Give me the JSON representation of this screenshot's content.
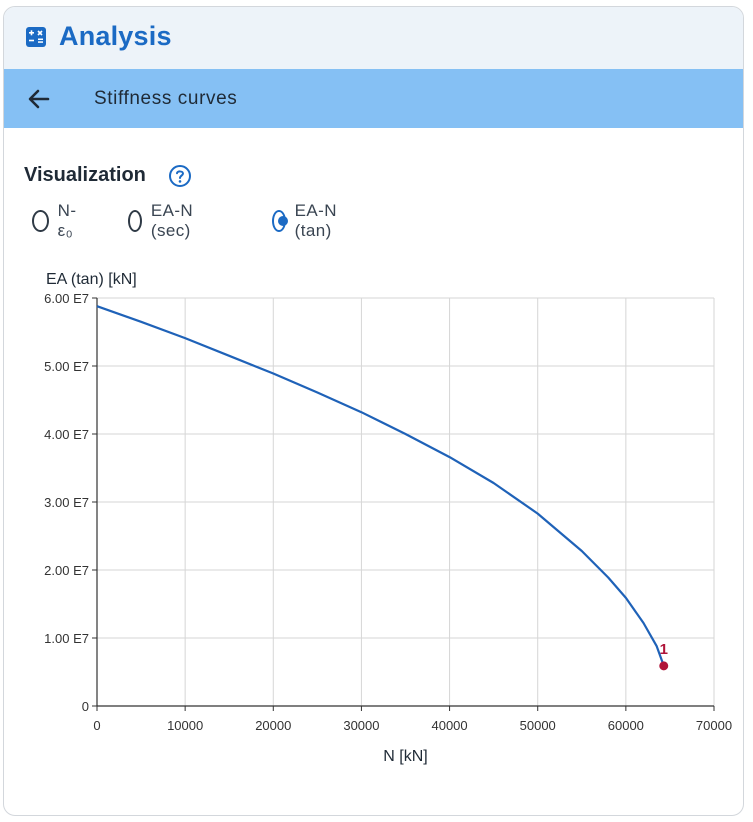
{
  "app": {
    "title": "Analysis",
    "icon": "calculator-icon"
  },
  "subheader": {
    "title": "Stiffness curves",
    "back_icon": "arrow-left-icon"
  },
  "visualization": {
    "title": "Visualization",
    "help_icon": "help-circle-icon",
    "options": [
      {
        "label": "N-ε₀",
        "checked": false
      },
      {
        "label": "EA-N (sec)",
        "checked": false
      },
      {
        "label": "EA-N (tan)",
        "checked": true
      }
    ]
  },
  "colors": {
    "accent": "#1b6ac4",
    "subheader_bg": "#85c0f4",
    "curve": "#1f62b8",
    "marker": "#b0153a"
  },
  "chart_data": {
    "type": "line",
    "ylabel": "EA (tan) [kN]",
    "xlabel": "N [kN]",
    "xlim": [
      0,
      70000
    ],
    "ylim": [
      0,
      60000000
    ],
    "grid": true,
    "x_ticks": [
      0,
      10000,
      20000,
      30000,
      40000,
      50000,
      60000,
      70000
    ],
    "x_tick_labels": [
      "0",
      "10000",
      "20000",
      "30000",
      "40000",
      "50000",
      "60000",
      "70000"
    ],
    "y_ticks": [
      0,
      10000000,
      20000000,
      30000000,
      40000000,
      50000000,
      60000000
    ],
    "y_tick_labels": [
      "0",
      "1.00 E7",
      "2.00 E7",
      "3.00 E7",
      "4.00 E7",
      "5.00 E7",
      "6.00 E7"
    ],
    "series": [
      {
        "name": "EA-N (tan)",
        "x": [
          0,
          5000,
          10000,
          15000,
          20000,
          25000,
          30000,
          35000,
          40000,
          45000,
          50000,
          55000,
          58000,
          60000,
          62000,
          63500,
          64300
        ],
        "y": [
          58800000,
          56500000,
          54100000,
          51500000,
          48900000,
          46100000,
          43200000,
          40000000,
          36600000,
          32800000,
          28300000,
          22800000,
          18900000,
          15900000,
          12200000,
          8800000,
          5900000
        ]
      }
    ],
    "annotations": [
      {
        "label": "1",
        "x": 64300,
        "y": 5900000
      }
    ]
  }
}
